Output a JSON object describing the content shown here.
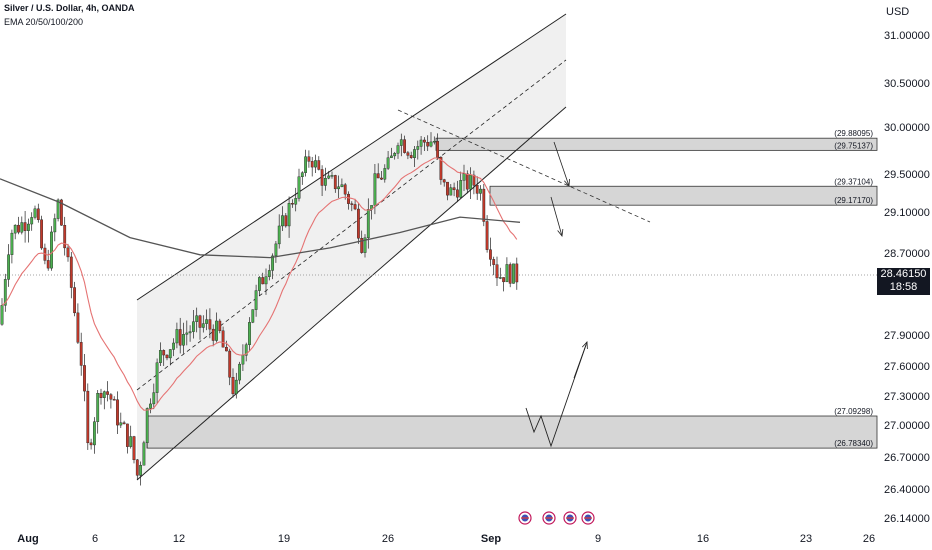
{
  "header": {
    "title": "Silver / U.S. Dollar, 4h, OANDA",
    "indicators": "EMA 20/50/100/200"
  },
  "axis": {
    "currency": "USD"
  },
  "price_tag": {
    "price": "28.46150",
    "countdown": "18:58"
  },
  "colors": {
    "up": "#4caf50",
    "down": "#c0392b",
    "zone": "#d6d6d6",
    "channel": "#f0f0f0",
    "ema_fast": "#e57373",
    "ema_slow": "#555555",
    "text": "#131722"
  },
  "chart_data": {
    "type": "candlestick",
    "x_axis": {
      "labels": [
        "Aug",
        "6",
        "12",
        "19",
        "26",
        "Sep",
        "9",
        "16",
        "23",
        "26"
      ]
    },
    "y_axis": {
      "ticks": [
        31.0,
        30.5,
        30.0,
        29.5,
        29.1,
        28.7,
        27.9,
        27.6,
        27.3,
        27.0,
        26.7,
        26.4,
        26.14
      ],
      "tick_labels": [
        "31.00000",
        "30.50000",
        "30.00000",
        "29.50000",
        "29.10000",
        "28.70000",
        "27.90000",
        "27.60000",
        "27.30000",
        "27.00000",
        "26.70000",
        "26.40000",
        "26.14000"
      ],
      "range": [
        26.05,
        31.35
      ]
    },
    "zones": [
      {
        "top": 29.88095,
        "bottom": 29.75137,
        "top_label": "(29.88095)",
        "bottom_label": "(29.75137)"
      },
      {
        "top": 29.37104,
        "bottom": 29.1717,
        "top_label": "(29.37104)",
        "bottom_label": "(29.17170)"
      },
      {
        "top": 27.09298,
        "bottom": 26.7834,
        "top_label": "(27.09298)",
        "bottom_label": "(26.78340)"
      }
    ],
    "current_price": 28.4615,
    "series": [
      {
        "name": "EMA 20",
        "color": "#e57373"
      },
      {
        "name": "EMA 200",
        "color": "#555555"
      }
    ],
    "grid": false,
    "legend": "top-left"
  }
}
